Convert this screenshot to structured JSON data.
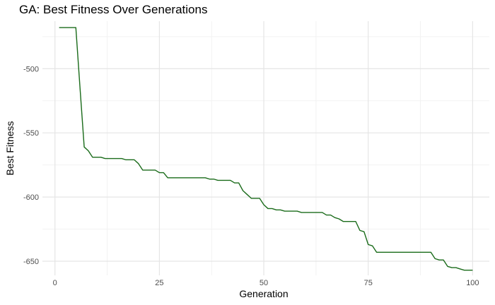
{
  "chart_data": {
    "type": "line",
    "title": "GA: Best Fitness Over Generations",
    "xlabel": "Generation",
    "ylabel": "Best Fitness",
    "xlim": [
      -3,
      104
    ],
    "ylim": [
      -661,
      -463
    ],
    "x_ticks": [
      0,
      25,
      50,
      75,
      100
    ],
    "y_ticks": [
      -500,
      -550,
      -600,
      -650
    ],
    "x_minor": [
      12.5,
      37.5,
      62.5,
      87.5
    ],
    "y_minor": [
      -475,
      -525,
      -575,
      -625
    ],
    "grid": true,
    "line_color": "#1a6b1a",
    "series": [
      {
        "x": [
          1,
          2,
          3,
          4,
          5,
          6,
          7,
          8,
          9,
          10,
          11,
          12,
          13,
          14,
          15,
          16,
          17,
          18,
          19,
          20,
          21,
          22,
          23,
          24,
          25,
          26,
          27,
          28,
          29,
          30,
          31,
          32,
          33,
          34,
          35,
          36,
          37,
          38,
          39,
          40,
          41,
          42,
          43,
          44,
          45,
          46,
          47,
          48,
          49,
          50,
          51,
          52,
          53,
          54,
          55,
          56,
          57,
          58,
          59,
          60,
          61,
          62,
          63,
          64,
          65,
          66,
          67,
          68,
          69,
          70,
          71,
          72,
          73,
          74,
          75,
          76,
          77,
          78,
          79,
          80,
          81,
          82,
          83,
          84,
          85,
          86,
          87,
          88,
          89,
          90,
          91,
          92,
          93,
          94,
          95,
          96,
          97,
          98,
          99,
          100
        ],
        "y": [
          -468,
          -468,
          -468,
          -468,
          -468,
          -515,
          -561,
          -564,
          -569,
          -569,
          -569,
          -570,
          -570,
          -570,
          -570,
          -570,
          -571,
          -571,
          -571,
          -574,
          -579,
          -579,
          -579,
          -579,
          -581,
          -581,
          -585,
          -585,
          -585,
          -585,
          -585,
          -585,
          -585,
          -585,
          -585,
          -585,
          -586,
          -586,
          -587,
          -587,
          -587,
          -587,
          -589,
          -589,
          -595,
          -598,
          -601,
          -601,
          -601,
          -606,
          -609,
          -609,
          -610,
          -610,
          -611,
          -611,
          -611,
          -611,
          -612,
          -612,
          -612,
          -612,
          -612,
          -612,
          -614,
          -614,
          -616,
          -617,
          -619,
          -619,
          -619,
          -619,
          -626,
          -627,
          -637,
          -638,
          -643,
          -643,
          -643,
          -643,
          -643,
          -643,
          -643,
          -643,
          -643,
          -643,
          -643,
          -643,
          -643,
          -643,
          -648,
          -649,
          -649,
          -654,
          -655,
          -655,
          -656,
          -657,
          -657,
          -657
        ]
      }
    ]
  }
}
